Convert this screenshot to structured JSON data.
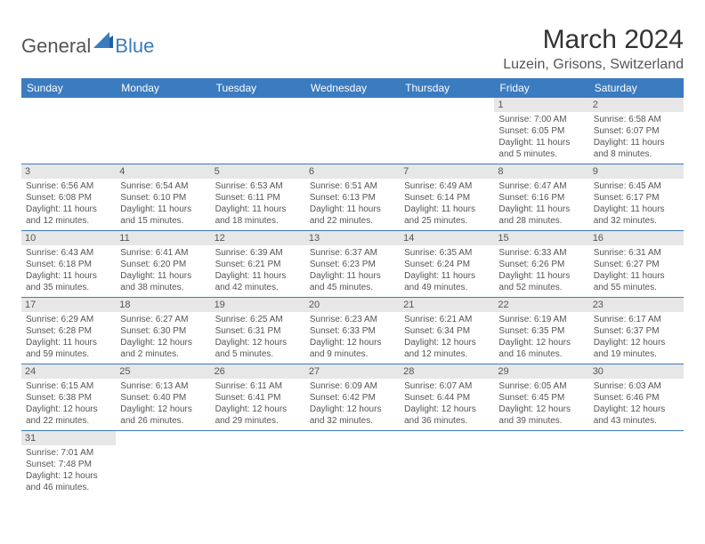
{
  "logo": {
    "general": "General",
    "blue": "Blue"
  },
  "title": "March 2024",
  "location": "Luzein, Grisons, Switzerland",
  "colors": {
    "header_bg": "#3b7bbf",
    "header_text": "#ffffff",
    "daynum_bg": "#e7e7e7",
    "cell_text": "#555555",
    "row_divider": "#3b7bbf",
    "page_bg": "#ffffff"
  },
  "fonts": {
    "title_size_pt": 22,
    "location_size_pt": 12,
    "dayheader_size_pt": 9,
    "cell_size_pt": 7.5
  },
  "days": [
    "Sunday",
    "Monday",
    "Tuesday",
    "Wednesday",
    "Thursday",
    "Friday",
    "Saturday"
  ],
  "weeks": [
    [
      null,
      null,
      null,
      null,
      null,
      {
        "n": "1",
        "sr": "7:00 AM",
        "ss": "6:05 PM",
        "dl": "11 hours and 5 minutes."
      },
      {
        "n": "2",
        "sr": "6:58 AM",
        "ss": "6:07 PM",
        "dl": "11 hours and 8 minutes."
      }
    ],
    [
      {
        "n": "3",
        "sr": "6:56 AM",
        "ss": "6:08 PM",
        "dl": "11 hours and 12 minutes."
      },
      {
        "n": "4",
        "sr": "6:54 AM",
        "ss": "6:10 PM",
        "dl": "11 hours and 15 minutes."
      },
      {
        "n": "5",
        "sr": "6:53 AM",
        "ss": "6:11 PM",
        "dl": "11 hours and 18 minutes."
      },
      {
        "n": "6",
        "sr": "6:51 AM",
        "ss": "6:13 PM",
        "dl": "11 hours and 22 minutes."
      },
      {
        "n": "7",
        "sr": "6:49 AM",
        "ss": "6:14 PM",
        "dl": "11 hours and 25 minutes."
      },
      {
        "n": "8",
        "sr": "6:47 AM",
        "ss": "6:16 PM",
        "dl": "11 hours and 28 minutes."
      },
      {
        "n": "9",
        "sr": "6:45 AM",
        "ss": "6:17 PM",
        "dl": "11 hours and 32 minutes."
      }
    ],
    [
      {
        "n": "10",
        "sr": "6:43 AM",
        "ss": "6:18 PM",
        "dl": "11 hours and 35 minutes."
      },
      {
        "n": "11",
        "sr": "6:41 AM",
        "ss": "6:20 PM",
        "dl": "11 hours and 38 minutes."
      },
      {
        "n": "12",
        "sr": "6:39 AM",
        "ss": "6:21 PM",
        "dl": "11 hours and 42 minutes."
      },
      {
        "n": "13",
        "sr": "6:37 AM",
        "ss": "6:23 PM",
        "dl": "11 hours and 45 minutes."
      },
      {
        "n": "14",
        "sr": "6:35 AM",
        "ss": "6:24 PM",
        "dl": "11 hours and 49 minutes."
      },
      {
        "n": "15",
        "sr": "6:33 AM",
        "ss": "6:26 PM",
        "dl": "11 hours and 52 minutes."
      },
      {
        "n": "16",
        "sr": "6:31 AM",
        "ss": "6:27 PM",
        "dl": "11 hours and 55 minutes."
      }
    ],
    [
      {
        "n": "17",
        "sr": "6:29 AM",
        "ss": "6:28 PM",
        "dl": "11 hours and 59 minutes."
      },
      {
        "n": "18",
        "sr": "6:27 AM",
        "ss": "6:30 PM",
        "dl": "12 hours and 2 minutes."
      },
      {
        "n": "19",
        "sr": "6:25 AM",
        "ss": "6:31 PM",
        "dl": "12 hours and 5 minutes."
      },
      {
        "n": "20",
        "sr": "6:23 AM",
        "ss": "6:33 PM",
        "dl": "12 hours and 9 minutes."
      },
      {
        "n": "21",
        "sr": "6:21 AM",
        "ss": "6:34 PM",
        "dl": "12 hours and 12 minutes."
      },
      {
        "n": "22",
        "sr": "6:19 AM",
        "ss": "6:35 PM",
        "dl": "12 hours and 16 minutes."
      },
      {
        "n": "23",
        "sr": "6:17 AM",
        "ss": "6:37 PM",
        "dl": "12 hours and 19 minutes."
      }
    ],
    [
      {
        "n": "24",
        "sr": "6:15 AM",
        "ss": "6:38 PM",
        "dl": "12 hours and 22 minutes."
      },
      {
        "n": "25",
        "sr": "6:13 AM",
        "ss": "6:40 PM",
        "dl": "12 hours and 26 minutes."
      },
      {
        "n": "26",
        "sr": "6:11 AM",
        "ss": "6:41 PM",
        "dl": "12 hours and 29 minutes."
      },
      {
        "n": "27",
        "sr": "6:09 AM",
        "ss": "6:42 PM",
        "dl": "12 hours and 32 minutes."
      },
      {
        "n": "28",
        "sr": "6:07 AM",
        "ss": "6:44 PM",
        "dl": "12 hours and 36 minutes."
      },
      {
        "n": "29",
        "sr": "6:05 AM",
        "ss": "6:45 PM",
        "dl": "12 hours and 39 minutes."
      },
      {
        "n": "30",
        "sr": "6:03 AM",
        "ss": "6:46 PM",
        "dl": "12 hours and 43 minutes."
      }
    ],
    [
      {
        "n": "31",
        "sr": "7:01 AM",
        "ss": "7:48 PM",
        "dl": "12 hours and 46 minutes."
      },
      null,
      null,
      null,
      null,
      null,
      null
    ]
  ],
  "labels": {
    "sunrise": "Sunrise:",
    "sunset": "Sunset:",
    "daylight": "Daylight:"
  }
}
